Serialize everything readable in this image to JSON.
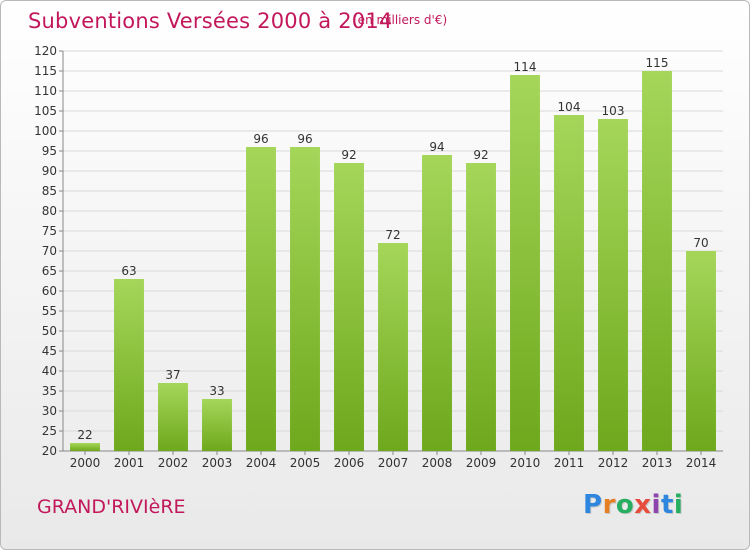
{
  "header": {
    "title": "Subventions Versées 2000 à 2014",
    "unit_note": "(en milliers d'€)"
  },
  "footer": {
    "commune": "GRAND'RIVIèRE",
    "logo_text": "Proxiti",
    "logo_colors": [
      "#2e86de",
      "#e67e22",
      "#27ae60",
      "#e74c3c",
      "#8e44ad",
      "#2e86de",
      "#27ae60"
    ]
  },
  "colors": {
    "bar_top": "#a5d65a",
    "bar_bottom": "#6ea81c",
    "grid": "#d9d9d9",
    "text": "#333333",
    "accent": "#c2185b"
  },
  "chart_data": {
    "type": "bar",
    "categories": [
      "2000",
      "2001",
      "2002",
      "2003",
      "2004",
      "2005",
      "2006",
      "2007",
      "2008",
      "2009",
      "2010",
      "2011",
      "2012",
      "2013",
      "2014"
    ],
    "values": [
      22,
      63,
      37,
      33,
      96,
      96,
      92,
      72,
      94,
      92,
      114,
      104,
      103,
      115,
      70
    ],
    "data_labels": [
      "22",
      "63",
      "37",
      "33",
      "96",
      "96",
      "92",
      "72",
      "94",
      "92",
      "114",
      "104",
      "103",
      "115",
      "70"
    ],
    "ylim": [
      20,
      120
    ],
    "yticks": [
      "20",
      "25",
      "30",
      "35",
      "40",
      "45",
      "50",
      "55",
      "60",
      "65",
      "70",
      "75",
      "80",
      "85",
      "90",
      "95",
      "100",
      "105",
      "110",
      "115",
      "120"
    ],
    "grid": true,
    "legend": "none"
  }
}
